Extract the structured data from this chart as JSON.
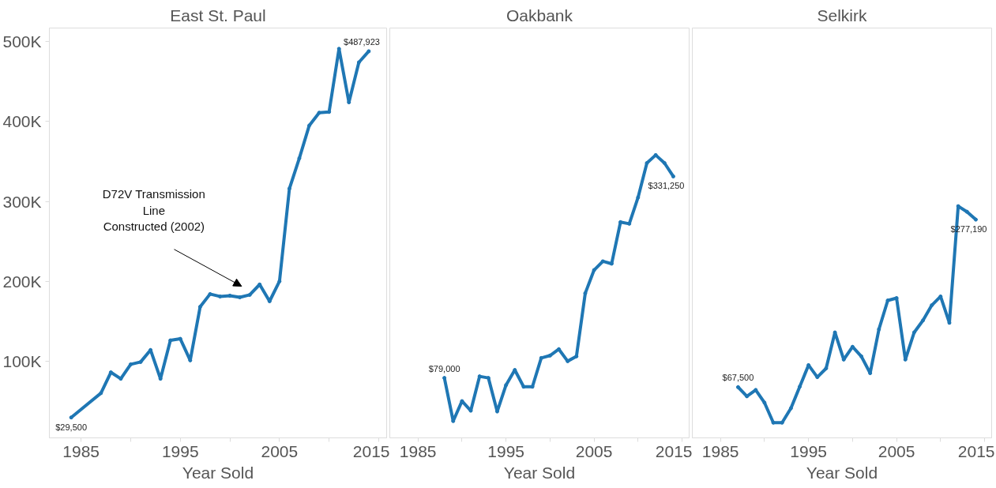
{
  "chart_data": [
    {
      "type": "line",
      "title": "East St. Paul",
      "xlabel": "Year Sold",
      "color": "#1f77b4",
      "grid": false,
      "marker": "circle",
      "x": [
        1984,
        1987,
        1988,
        1989,
        1990,
        1991,
        1992,
        1993,
        1994,
        1995,
        1996,
        1997,
        1998,
        1999,
        2000,
        2001,
        2002,
        2003,
        2004,
        2005,
        2006,
        2007,
        2008,
        2009,
        2010,
        2011,
        2012,
        2013,
        2014
      ],
      "values": [
        29500,
        60000,
        86000,
        78000,
        96000,
        99000,
        114000,
        78000,
        126000,
        128000,
        101000,
        168000,
        184000,
        181000,
        182000,
        180000,
        183000,
        196000,
        175000,
        200000,
        316000,
        354000,
        395000,
        411000,
        412000,
        491000,
        424000,
        474000,
        487923
      ],
      "value_labels": [
        "$29,500",
        null,
        null,
        null,
        null,
        null,
        null,
        null,
        null,
        null,
        null,
        null,
        null,
        null,
        null,
        null,
        null,
        null,
        null,
        null,
        null,
        null,
        null,
        null,
        null,
        null,
        null,
        null,
        "$487,923"
      ],
      "annotations": [
        "D72V Transmission\nLine\nConstructed (2002)"
      ],
      "xlim": [
        1981.8,
        2015.8
      ],
      "ylim": [
        4000,
        517000
      ],
      "xticks": [
        1985,
        {
          "value": 1990,
          "label": null
        },
        1995,
        {
          "value": 2000,
          "label": null
        },
        2005,
        {
          "value": 2010,
          "label": null
        },
        2015
      ],
      "yticks": [
        {
          "value": 100000,
          "label": "100K"
        },
        {
          "value": 200000,
          "label": "200K"
        },
        {
          "value": 300000,
          "label": "300K"
        },
        {
          "value": 400000,
          "label": "400K"
        },
        {
          "value": 500000,
          "label": "500K"
        }
      ]
    },
    {
      "type": "line",
      "title": "Oakbank",
      "xlabel": "Year Sold",
      "color": "#1f77b4",
      "grid": false,
      "marker": "circle",
      "tick_labels": "x",
      "x": [
        1988,
        1989,
        1990,
        1991,
        1992,
        1993,
        1994,
        1995,
        1996,
        1997,
        1998,
        1999,
        2000,
        2001,
        2002,
        2003,
        2004,
        2005,
        2006,
        2007,
        2008,
        2009,
        2010,
        2011,
        2012,
        2013,
        2014
      ],
      "values": [
        79000,
        25000,
        50000,
        38000,
        81000,
        79000,
        37000,
        70000,
        89000,
        68000,
        68000,
        104000,
        107000,
        115000,
        100000,
        106000,
        185000,
        214000,
        225000,
        222000,
        274000,
        272000,
        305000,
        348000,
        358000,
        348000,
        331250
      ],
      "value_labels": [
        "$79,000",
        null,
        null,
        null,
        null,
        null,
        null,
        null,
        null,
        null,
        null,
        null,
        null,
        null,
        null,
        null,
        null,
        null,
        null,
        null,
        null,
        null,
        null,
        null,
        null,
        null,
        "$331,250"
      ],
      "xlim": [
        1981.8,
        2015.8
      ],
      "ylim": [
        4000,
        517000
      ],
      "xticks": [
        1985,
        {
          "value": 1990,
          "label": null
        },
        1995,
        {
          "value": 2000,
          "label": null
        },
        2005,
        {
          "value": 2010,
          "label": null
        },
        2015
      ]
    },
    {
      "type": "line",
      "title": "Selkirk",
      "xlabel": "Year Sold",
      "color": "#1f77b4",
      "grid": false,
      "marker": "circle",
      "tick_labels": "x",
      "x": [
        1987,
        1988,
        1989,
        1990,
        1991,
        1992,
        1993,
        1994,
        1995,
        1996,
        1997,
        1998,
        1999,
        2000,
        2001,
        2002,
        2003,
        2004,
        2005,
        2006,
        2007,
        2008,
        2009,
        2010,
        2011,
        2012,
        2013,
        2014
      ],
      "values": [
        67500,
        56000,
        64000,
        48000,
        23000,
        23000,
        41000,
        68000,
        95000,
        80000,
        91000,
        136000,
        102000,
        118000,
        106000,
        85000,
        140000,
        176000,
        179000,
        102000,
        136000,
        151000,
        170000,
        181000,
        148000,
        294000,
        287000,
        277190
      ],
      "value_labels": [
        "$67,500",
        null,
        null,
        null,
        null,
        null,
        null,
        null,
        null,
        null,
        null,
        null,
        null,
        null,
        null,
        null,
        null,
        null,
        null,
        null,
        null,
        null,
        null,
        null,
        null,
        null,
        null,
        "$277,190"
      ],
      "xlim": [
        1981.8,
        2015.8
      ],
      "ylim": [
        4000,
        517000
      ],
      "xticks": [
        1985,
        {
          "value": 1990,
          "label": null
        },
        1995,
        {
          "value": 2000,
          "label": null
        },
        2005,
        {
          "value": 2010,
          "label": null
        },
        2015
      ]
    }
  ]
}
